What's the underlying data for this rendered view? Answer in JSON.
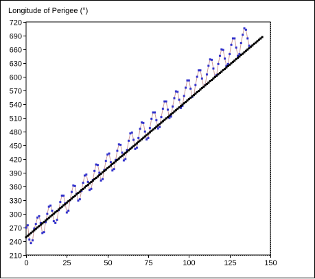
{
  "chart_data": {
    "type": "scatter",
    "title": "Longitude of Perigee (°)",
    "xlabel": "",
    "ylabel": "",
    "xlim": [
      0,
      150
    ],
    "ylim": [
      210,
      720
    ],
    "xticks": [
      0,
      25,
      50,
      75,
      100,
      125,
      150
    ],
    "yticks": [
      210,
      240,
      270,
      300,
      330,
      360,
      390,
      420,
      450,
      480,
      510,
      540,
      570,
      600,
      630,
      660,
      690,
      720
    ],
    "grid": true,
    "legend": "none",
    "colors": {
      "observed_points": "#3333cc",
      "observed_line": "#cc9999",
      "trend_points": "#000000",
      "trend_line": "#000000"
    },
    "series": [
      {
        "style": "points-with-line",
        "points": [
          [
            0,
            270
          ],
          [
            1,
            275
          ],
          [
            2,
            244
          ],
          [
            3,
            236
          ],
          [
            4,
            242
          ],
          [
            5,
            268
          ],
          [
            6,
            278
          ],
          [
            7,
            292
          ],
          [
            8,
            295
          ],
          [
            9,
            280
          ],
          [
            10,
            258
          ],
          [
            11,
            260
          ],
          [
            12,
            282
          ],
          [
            13,
            300
          ],
          [
            14,
            316
          ],
          [
            15,
            318
          ],
          [
            16,
            307
          ],
          [
            17,
            284
          ],
          [
            18,
            280
          ],
          [
            19,
            287
          ],
          [
            20,
            308
          ],
          [
            21,
            326
          ],
          [
            22,
            340
          ],
          [
            23,
            340
          ],
          [
            24,
            323
          ],
          [
            25,
            303
          ],
          [
            26,
            307
          ],
          [
            27,
            330
          ],
          [
            28,
            348
          ],
          [
            29,
            362
          ],
          [
            30,
            361
          ],
          [
            31,
            344
          ],
          [
            32,
            329
          ],
          [
            33,
            332
          ],
          [
            34,
            350
          ],
          [
            35,
            368
          ],
          [
            36,
            384
          ],
          [
            37,
            386
          ],
          [
            38,
            370
          ],
          [
            39,
            352
          ],
          [
            40,
            355
          ],
          [
            41,
            374
          ],
          [
            42,
            394
          ],
          [
            43,
            408
          ],
          [
            44,
            407
          ],
          [
            45,
            390
          ],
          [
            46,
            373
          ],
          [
            47,
            376
          ],
          [
            48,
            396
          ],
          [
            49,
            416
          ],
          [
            50,
            430
          ],
          [
            51,
            432
          ],
          [
            52,
            413
          ],
          [
            53,
            395
          ],
          [
            54,
            398
          ],
          [
            55,
            418
          ],
          [
            56,
            438
          ],
          [
            57,
            452
          ],
          [
            58,
            451
          ],
          [
            59,
            434
          ],
          [
            60,
            417
          ],
          [
            61,
            420
          ],
          [
            62,
            440
          ],
          [
            63,
            460
          ],
          [
            64,
            476
          ],
          [
            65,
            478
          ],
          [
            66,
            462
          ],
          [
            67,
            442
          ],
          [
            68,
            445
          ],
          [
            69,
            466
          ],
          [
            70,
            486
          ],
          [
            71,
            500
          ],
          [
            72,
            499
          ],
          [
            73,
            480
          ],
          [
            74,
            463
          ],
          [
            75,
            466
          ],
          [
            76,
            488
          ],
          [
            77,
            508
          ],
          [
            78,
            522
          ],
          [
            79,
            522
          ],
          [
            80,
            505
          ],
          [
            81,
            487
          ],
          [
            82,
            490
          ],
          [
            83,
            512
          ],
          [
            84,
            530
          ],
          [
            85,
            546
          ],
          [
            86,
            546
          ],
          [
            87,
            528
          ],
          [
            88,
            510
          ],
          [
            89,
            513
          ],
          [
            90,
            535
          ],
          [
            91,
            553
          ],
          [
            92,
            568
          ],
          [
            93,
            567
          ],
          [
            94,
            550
          ],
          [
            95,
            532
          ],
          [
            96,
            536
          ],
          [
            97,
            558
          ],
          [
            98,
            576
          ],
          [
            99,
            592
          ],
          [
            100,
            592
          ],
          [
            101,
            574
          ],
          [
            102,
            556
          ],
          [
            103,
            560
          ],
          [
            104,
            582
          ],
          [
            105,
            600
          ],
          [
            106,
            614
          ],
          [
            107,
            614
          ],
          [
            108,
            596
          ],
          [
            109,
            578
          ],
          [
            110,
            582
          ],
          [
            111,
            605
          ],
          [
            112,
            624
          ],
          [
            113,
            638
          ],
          [
            114,
            637
          ],
          [
            115,
            618
          ],
          [
            116,
            600
          ],
          [
            117,
            604
          ],
          [
            118,
            628
          ],
          [
            119,
            646
          ],
          [
            120,
            660
          ],
          [
            121,
            659
          ],
          [
            122,
            640
          ],
          [
            123,
            624
          ],
          [
            124,
            628
          ],
          [
            125,
            650
          ],
          [
            126,
            670
          ],
          [
            127,
            684
          ],
          [
            128,
            684
          ],
          [
            129,
            664
          ],
          [
            130,
            646
          ],
          [
            131,
            650
          ],
          [
            132,
            674
          ],
          [
            133,
            692
          ],
          [
            134,
            706
          ],
          [
            135,
            703
          ],
          [
            136,
            684
          ],
          [
            137,
            668
          ]
        ]
      },
      {
        "style": "trend-line",
        "slope": 3.02,
        "intercept": 249,
        "x_start": 0,
        "x_end": 145,
        "step": 1
      }
    ]
  }
}
